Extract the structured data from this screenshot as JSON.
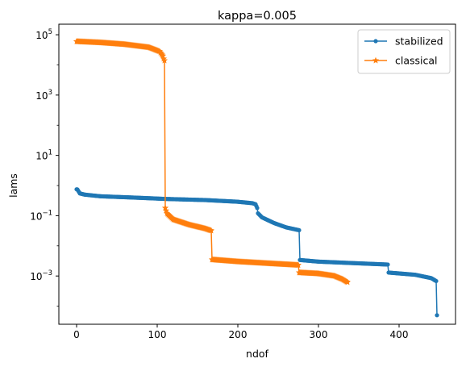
{
  "chart_data": {
    "type": "line",
    "title": "kappa=0.005",
    "xlabel": "ndof",
    "ylabel": "lams",
    "yscale": "log",
    "xlim": [
      -22,
      470
    ],
    "ylim_log10": [
      -4.6,
      5.35
    ],
    "xticks": [
      0,
      100,
      200,
      300,
      400
    ],
    "xtick_labels": [
      "0",
      "100",
      "200",
      "300",
      "400"
    ],
    "yticks_log10": [
      -3,
      -1,
      1,
      3,
      5
    ],
    "ytick_base": "10",
    "ytick_exponents": [
      "−3",
      "−1",
      "1",
      "3",
      "5"
    ],
    "legend": {
      "placement": "top-right",
      "entries": [
        "stabilized",
        "classical"
      ]
    },
    "series": [
      {
        "name": "stabilized",
        "color": "#1f77b4",
        "marker": "dot",
        "breakpoints": [
          [
            0,
            0.75
          ],
          [
            1,
            0.74
          ],
          [
            4,
            0.55
          ],
          [
            10,
            0.5
          ],
          [
            30,
            0.44
          ],
          [
            60,
            0.41
          ],
          [
            90,
            0.38
          ],
          [
            110,
            0.36
          ],
          [
            160,
            0.33
          ],
          [
            200,
            0.29
          ],
          [
            218,
            0.26
          ],
          [
            222,
            0.24
          ],
          [
            224,
            0.18
          ],
          [
            225,
            0.12
          ],
          [
            230,
            0.088
          ],
          [
            245,
            0.057
          ],
          [
            260,
            0.041
          ],
          [
            276,
            0.033
          ],
          [
            277,
            0.0034
          ],
          [
            300,
            0.003
          ],
          [
            340,
            0.0027
          ],
          [
            386,
            0.0024
          ],
          [
            387,
            0.0013
          ],
          [
            420,
            0.0011
          ],
          [
            440,
            0.00085
          ],
          [
            446,
            0.00068
          ],
          [
            447,
            5e-05
          ]
        ]
      },
      {
        "name": "classical",
        "color": "#ff7f0e",
        "marker": "star",
        "breakpoints": [
          [
            0,
            60000
          ],
          [
            30,
            55000
          ],
          [
            60,
            48000
          ],
          [
            90,
            38000
          ],
          [
            103,
            28000
          ],
          [
            107,
            20000
          ],
          [
            108,
            16000
          ],
          [
            109,
            14000
          ],
          [
            110,
            0.18
          ],
          [
            112,
            0.12
          ],
          [
            120,
            0.075
          ],
          [
            140,
            0.05
          ],
          [
            160,
            0.037
          ],
          [
            167,
            0.032
          ],
          [
            168,
            0.0035
          ],
          [
            200,
            0.003
          ],
          [
            240,
            0.0026
          ],
          [
            275,
            0.0023
          ],
          [
            276,
            0.0013
          ],
          [
            300,
            0.0012
          ],
          [
            320,
            0.001
          ],
          [
            330,
            0.00078
          ],
          [
            336,
            0.00062
          ]
        ]
      }
    ]
  }
}
